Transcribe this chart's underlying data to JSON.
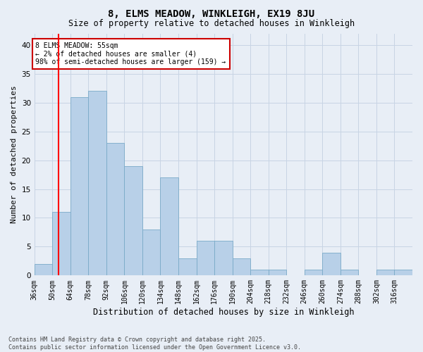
{
  "title1": "8, ELMS MEADOW, WINKLEIGH, EX19 8JU",
  "title2": "Size of property relative to detached houses in Winkleigh",
  "xlabel": "Distribution of detached houses by size in Winkleigh",
  "ylabel": "Number of detached properties",
  "annotation_line1": "8 ELMS MEADOW: 55sqm",
  "annotation_line2": "← 2% of detached houses are smaller (4)",
  "annotation_line3": "98% of semi-detached houses are larger (159) →",
  "footer1": "Contains HM Land Registry data © Crown copyright and database right 2025.",
  "footer2": "Contains public sector information licensed under the Open Government Licence v3.0.",
  "property_size": 55,
  "categories": [
    "36sqm",
    "50sqm",
    "64sqm",
    "78sqm",
    "92sqm",
    "106sqm",
    "120sqm",
    "134sqm",
    "148sqm",
    "162sqm",
    "176sqm",
    "190sqm",
    "204sqm",
    "218sqm",
    "232sqm",
    "246sqm",
    "260sqm",
    "274sqm",
    "288sqm",
    "302sqm",
    "316sqm"
  ],
  "bin_edges": [
    36,
    50,
    64,
    78,
    92,
    106,
    120,
    134,
    148,
    162,
    176,
    190,
    204,
    218,
    232,
    246,
    260,
    274,
    288,
    302,
    316,
    330
  ],
  "values": [
    2,
    11,
    31,
    32,
    23,
    19,
    8,
    17,
    3,
    6,
    6,
    3,
    1,
    1,
    0,
    1,
    4,
    1,
    0,
    1,
    1
  ],
  "bar_color": "#b8d0e8",
  "bar_edge_color": "#7aaac8",
  "grid_color": "#c8d4e4",
  "background_color": "#e8eef6",
  "red_line_x": 55,
  "annotation_box_facecolor": "#ffffff",
  "annotation_box_edgecolor": "#cc0000",
  "ylim": [
    0,
    42
  ],
  "yticks": [
    0,
    5,
    10,
    15,
    20,
    25,
    30,
    35,
    40
  ],
  "title_fontsize": 10,
  "subtitle_fontsize": 8.5,
  "ylabel_fontsize": 8,
  "xlabel_fontsize": 8.5,
  "tick_fontsize": 7,
  "annot_fontsize": 7,
  "footer_fontsize": 6
}
